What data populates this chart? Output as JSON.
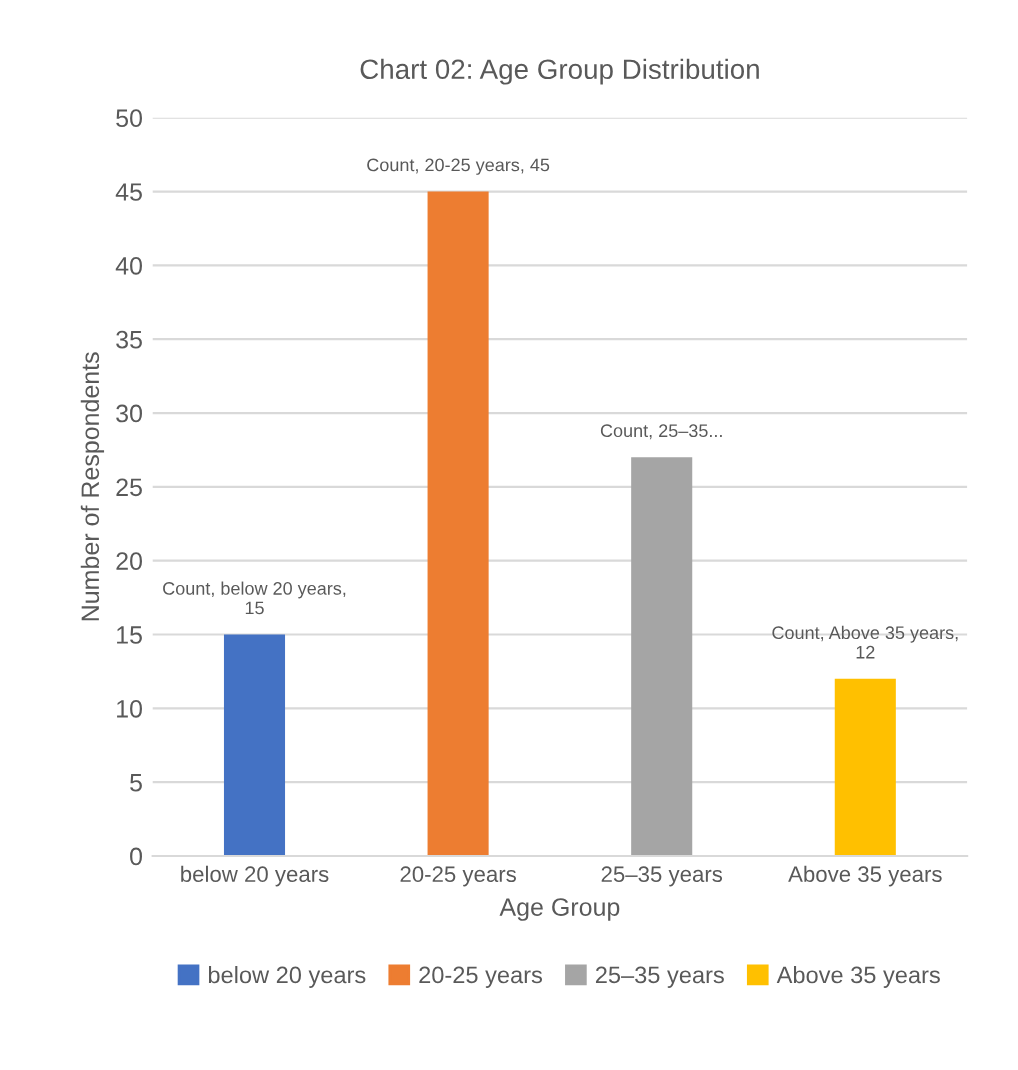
{
  "chart_data": {
    "type": "bar",
    "title": "Chart 02: Age Group Distribution",
    "xlabel": "Age Group",
    "ylabel": "Number of Respondents",
    "categories": [
      "below 20 years",
      "20-25 years",
      "25–35 years",
      "Above 35 years"
    ],
    "series": [
      {
        "name": "below 20 years",
        "color": "#4472c4",
        "values": [
          15,
          null,
          null,
          null
        ],
        "value_labels": [
          "Count, below 20 years,\n15",
          null,
          null,
          null
        ]
      },
      {
        "name": "20-25 years",
        "color": "#ed7d31",
        "values": [
          null,
          45,
          null,
          null
        ],
        "value_labels": [
          null,
          "Count, 20-25 years, 45",
          null,
          null
        ]
      },
      {
        "name": "25–35 years",
        "color": "#a5a5a5",
        "values": [
          null,
          null,
          27,
          null
        ],
        "value_labels": [
          null,
          null,
          "Count, 25–35...",
          null
        ]
      },
      {
        "name": "Above 35 years",
        "color": "#ffc000",
        "values": [
          null,
          null,
          null,
          12
        ],
        "value_labels": [
          null,
          null,
          null,
          "Count, Above 35 years,\n12"
        ]
      }
    ],
    "ylim": [
      0,
      50
    ],
    "yticks": [
      0,
      5,
      10,
      15,
      20,
      25,
      30,
      35,
      40,
      45,
      50
    ],
    "grid": "y",
    "legend": "bottom"
  }
}
